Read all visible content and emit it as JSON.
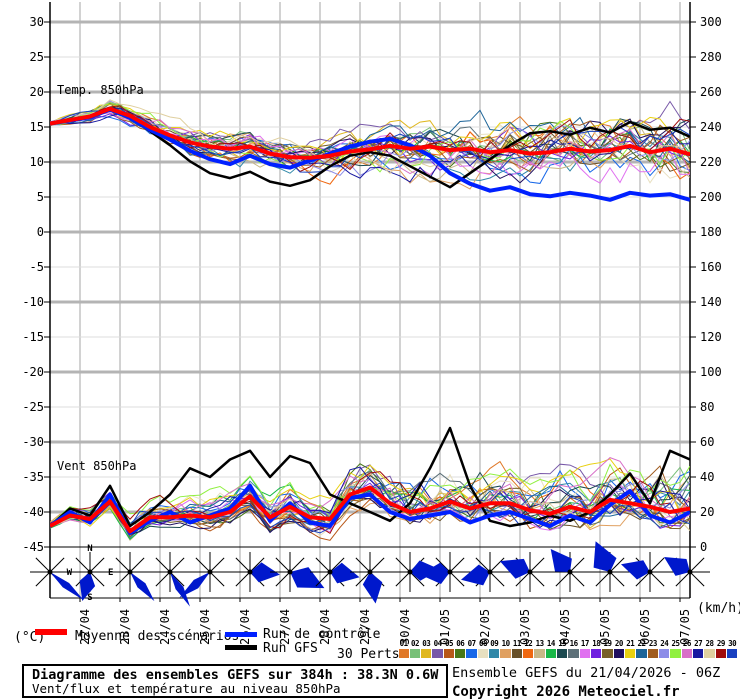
{
  "axes": {
    "left_unit": "(°C)",
    "right_unit": "(km/h)",
    "left_ticks": [
      30,
      25,
      20,
      15,
      10,
      5,
      0,
      -5,
      -10,
      -15,
      -20,
      -25,
      -30,
      -35,
      -40,
      -45
    ],
    "right_ticks": [
      300,
      280,
      260,
      240,
      220,
      200,
      180,
      160,
      140,
      120,
      100,
      80,
      60,
      40,
      20,
      0
    ],
    "dates": [
      "22/04",
      "23/04",
      "24/04",
      "25/04",
      "26/04",
      "27/04",
      "28/04",
      "29/04",
      "30/04",
      "01/05",
      "02/05",
      "03/05",
      "04/05",
      "05/05",
      "06/05",
      "07/05"
    ]
  },
  "panels": {
    "temp_label": "Temp. 850hPa",
    "wind_label": "Vent 850hPa"
  },
  "legend": {
    "mean_label": "Moyenne des scénarios",
    "control_label": "Run de contrôle",
    "gfs_label": "Run GFS",
    "perts_label": "30 Perts.",
    "mean_color": "#ff0000",
    "control_color": "#0020ff",
    "gfs_color": "#000000"
  },
  "members": {
    "numbers": [
      "01",
      "02",
      "03",
      "04",
      "05",
      "06",
      "07",
      "08",
      "09",
      "10",
      "11",
      "12",
      "13",
      "14",
      "15",
      "16",
      "17",
      "18",
      "19",
      "20",
      "21",
      "22",
      "23",
      "24",
      "25",
      "26",
      "27",
      "28",
      "29",
      "30"
    ],
    "colors": [
      "#E07828",
      "#78C078",
      "#E0B820",
      "#7858A8",
      "#B85818",
      "#487818",
      "#1868E8",
      "#E8E0C0",
      "#3088A8",
      "#E0A060",
      "#685028",
      "#F06810",
      "#C8B888",
      "#18B848",
      "#1C4A50",
      "#5C7078",
      "#E070F0",
      "#7020E0",
      "#786028",
      "#201060",
      "#E8D010",
      "#1C6498",
      "#A05C20",
      "#8C8CE8",
      "#90F040",
      "#D870C8",
      "#1818A0",
      "#E0D0A0",
      "#A00C0C",
      "#1840C0"
    ]
  },
  "compass": {
    "n": "N",
    "s": "S",
    "e": "E",
    "w": "W"
  },
  "wind_roses": {
    "arrow_color": "#0018CC",
    "roses": [
      {
        "dir": 130,
        "spread": 10,
        "len": 44
      },
      {
        "dir": 195,
        "spread": 35,
        "len": 30
      },
      {
        "dir": 140,
        "spread": 14,
        "len": 38
      },
      {
        "dir": 150,
        "spread": 12,
        "len": 40
      },
      {
        "dir": 230,
        "spread": 14,
        "len": 40
      },
      {
        "dir": 95,
        "spread": 45,
        "len": 30
      },
      {
        "dir": 115,
        "spread": 40,
        "len": 38
      },
      {
        "dir": 100,
        "spread": 48,
        "len": 30
      },
      {
        "dir": 170,
        "spread": 40,
        "len": 32
      },
      {
        "dir": 85,
        "spread": 45,
        "len": 30
      },
      {
        "dir": 265,
        "spread": 48,
        "len": 30
      },
      {
        "dir": 255,
        "spread": 48,
        "len": 30
      },
      {
        "dir": 290,
        "spread": 45,
        "len": 32
      },
      {
        "dir": 320,
        "spread": 48,
        "len": 30
      },
      {
        "dir": 335,
        "spread": 50,
        "len": 34
      },
      {
        "dir": 285,
        "spread": 45,
        "len": 30
      },
      {
        "dir": 300,
        "spread": 45,
        "len": 30
      }
    ]
  },
  "footer": {
    "box_title": "Diagramme des ensembles GEFS sur 384h : 38.3N 0.6W",
    "box_subtitle": "Vent/flux et température au niveau 850hPa",
    "run_info": "Ensemble GEFS du 21/04/2026 - 06Z",
    "copyright": "Copyright 2026 Meteociel.fr"
  },
  "chart_data": [
    {
      "type": "line",
      "title": "Temp. 850hPa",
      "ylabel": "(°C)",
      "ylim": [
        -45,
        30
      ],
      "x_hours": [
        0,
        12,
        24,
        36,
        48,
        60,
        72,
        84,
        96,
        108,
        120,
        132,
        144,
        156,
        168,
        180,
        192,
        204,
        216,
        228,
        240,
        252,
        264,
        276,
        288,
        300,
        312,
        324,
        336,
        348,
        360,
        372,
        384
      ],
      "series": [
        {
          "name": "Moyenne des scénarios",
          "color": "#ff0000",
          "values": [
            15.5,
            16.0,
            16.5,
            17.6,
            16.6,
            15.0,
            13.8,
            12.8,
            12.2,
            11.9,
            12.2,
            11.2,
            10.7,
            10.6,
            10.9,
            11.5,
            11.8,
            12.3,
            11.9,
            12.2,
            11.7,
            11.9,
            11.4,
            11.7,
            11.2,
            11.4,
            11.9,
            11.5,
            11.7,
            12.3,
            11.4,
            11.9,
            11.1
          ]
        },
        {
          "name": "Run de contrôle",
          "color": "#0020ff",
          "values": [
            15.5,
            15.9,
            16.4,
            17.5,
            16.3,
            14.6,
            13.2,
            11.6,
            10.4,
            9.7,
            10.9,
            9.7,
            9.2,
            10.2,
            11.2,
            12.2,
            12.9,
            13.3,
            12.4,
            10.9,
            8.4,
            6.9,
            5.9,
            6.4,
            5.4,
            5.1,
            5.6,
            5.2,
            4.6,
            5.6,
            5.2,
            5.4,
            4.6
          ]
        },
        {
          "name": "Run GFS",
          "color": "#000000",
          "values": [
            15.5,
            16.0,
            16.6,
            17.7,
            16.4,
            14.4,
            12.4,
            10.1,
            8.4,
            7.7,
            8.6,
            7.2,
            6.6,
            7.4,
            9.4,
            10.9,
            11.4,
            10.9,
            9.4,
            7.9,
            6.4,
            8.4,
            10.4,
            12.4,
            14.1,
            14.4,
            13.9,
            14.9,
            14.2,
            15.7,
            14.6,
            14.9,
            13.6
          ]
        }
      ],
      "ensemble": {
        "count": 30,
        "spread_start": 0.6,
        "spread_end": 5.2,
        "clamp": [
          3,
          19.3
        ]
      }
    },
    {
      "type": "line",
      "title": "Vent 850hPa",
      "ylabel": "(km/h)",
      "ylim": [
        0,
        300
      ],
      "x_hours": [
        0,
        12,
        24,
        36,
        48,
        60,
        72,
        84,
        96,
        108,
        120,
        132,
        144,
        156,
        168,
        180,
        192,
        204,
        216,
        228,
        240,
        252,
        264,
        276,
        288,
        300,
        312,
        324,
        336,
        348,
        360,
        372,
        384
      ],
      "series": [
        {
          "name": "Moyenne des scénarios",
          "color": "#ff0000",
          "values": [
            12,
            18,
            16,
            26,
            9,
            17,
            17,
            18,
            17,
            20,
            29,
            17,
            23,
            17,
            16,
            30,
            34,
            25,
            20,
            22,
            26,
            22,
            25,
            25,
            21,
            19,
            23,
            20,
            27,
            25,
            23,
            20,
            22
          ]
        },
        {
          "name": "Run de contrôle",
          "color": "#0020ff",
          "values": [
            12,
            20,
            14,
            30,
            8,
            15,
            20,
            14,
            18,
            22,
            35,
            15,
            25,
            14,
            12,
            28,
            30,
            20,
            16,
            18,
            20,
            14,
            18,
            20,
            16,
            12,
            18,
            14,
            24,
            32,
            18,
            14,
            20
          ]
        },
        {
          "name": "Run GFS",
          "color": "#000000",
          "values": [
            12,
            22,
            18,
            35,
            12,
            20,
            30,
            45,
            40,
            50,
            55,
            40,
            52,
            48,
            30,
            25,
            20,
            15,
            25,
            45,
            68,
            35,
            15,
            12,
            14,
            18,
            15,
            20,
            30,
            42,
            25,
            55,
            50
          ]
        }
      ],
      "ensemble": {
        "count": 30,
        "spread_start": 2.5,
        "spread_end": 15,
        "clamp": [
          3,
          86
        ]
      }
    }
  ]
}
